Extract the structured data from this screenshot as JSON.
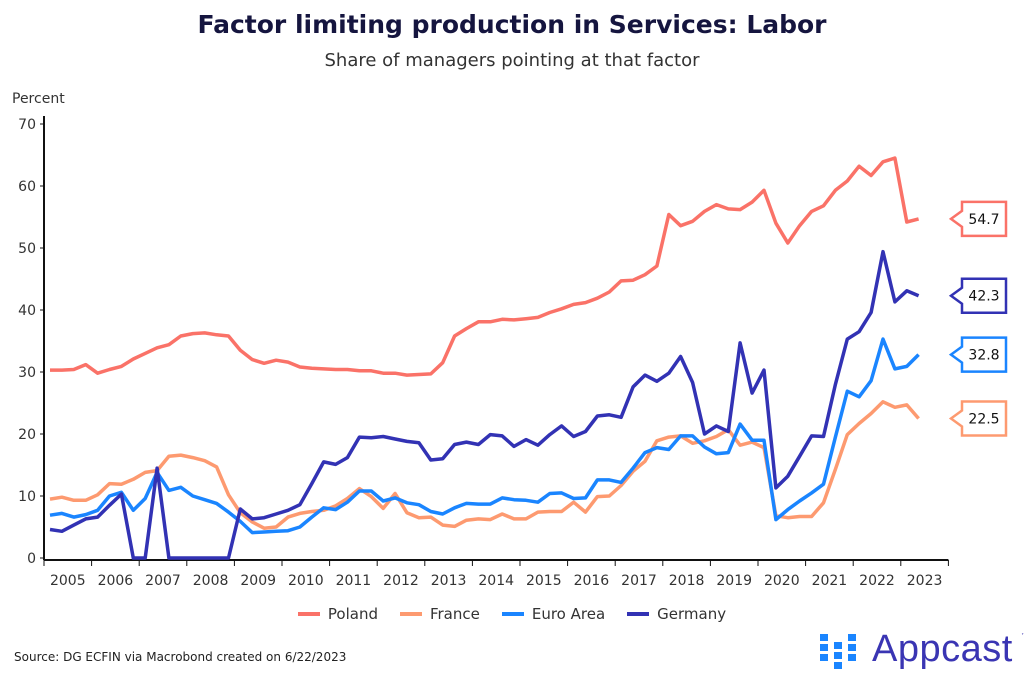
{
  "chart_data": {
    "type": "line",
    "title": "Factor limiting production in Services: Labor",
    "subtitle": "Share of managers pointing at that factor",
    "ylabel": "Percent",
    "xlabel": "",
    "ylim": [
      0,
      70
    ],
    "yticks": [
      "0",
      "10",
      "20",
      "30",
      "40",
      "50",
      "60",
      "70"
    ],
    "xticks": [
      "2005",
      "2006",
      "2007",
      "2008",
      "2009",
      "2010",
      "2011",
      "2012",
      "2013",
      "2014",
      "2015",
      "2016",
      "2017",
      "2018",
      "2019",
      "2020",
      "2021",
      "2022",
      "2023"
    ],
    "x_start": "2005Q1",
    "frequency": "quarterly",
    "legend_position": "bottom",
    "series": [
      {
        "name": "Poland",
        "color": "#fa7268",
        "last_label": "54.7",
        "values": [
          30.3,
          30.3,
          30.4,
          31.2,
          29.8,
          30.4,
          30.9,
          32.1,
          33.0,
          33.9,
          34.4,
          35.8,
          36.2,
          36.3,
          36.0,
          35.8,
          33.5,
          32.0,
          31.4,
          31.9,
          31.6,
          30.8,
          30.6,
          30.5,
          30.4,
          30.4,
          30.2,
          30.2,
          29.8,
          29.8,
          29.5,
          29.6,
          29.7,
          31.5,
          35.8,
          37.0,
          38.1,
          38.1,
          38.5,
          38.4,
          38.6,
          38.8,
          39.6,
          40.2,
          40.9,
          41.2,
          41.9,
          42.9,
          44.7,
          44.8,
          45.7,
          47.1,
          55.4,
          53.6,
          54.3,
          55.9,
          57.0,
          56.3,
          56.2,
          57.4,
          59.3,
          54.0,
          50.8,
          53.6,
          55.9,
          56.8,
          59.3,
          60.8,
          63.2,
          61.7,
          63.9,
          64.5,
          54.2,
          54.7
        ]
      },
      {
        "name": "France",
        "color": "#fd9a70",
        "last_label": "22.5",
        "values": [
          9.5,
          9.8,
          9.3,
          9.3,
          10.2,
          12.0,
          11.9,
          12.7,
          13.8,
          14.1,
          16.4,
          16.6,
          16.2,
          15.7,
          14.7,
          10.2,
          7.3,
          5.8,
          4.8,
          5.0,
          6.6,
          7.2,
          7.5,
          7.7,
          8.4,
          9.6,
          11.2,
          9.9,
          8.0,
          10.4,
          7.3,
          6.5,
          6.6,
          5.3,
          5.1,
          6.1,
          6.3,
          6.2,
          7.1,
          6.3,
          6.3,
          7.4,
          7.5,
          7.5,
          9.0,
          7.4,
          9.9,
          10.0,
          11.7,
          14.0,
          15.6,
          18.9,
          19.5,
          19.7,
          18.5,
          18.9,
          19.6,
          20.7,
          18.2,
          18.7,
          17.8,
          6.8,
          6.5,
          6.7,
          6.7,
          8.9,
          14.3,
          19.9,
          21.7,
          23.3,
          25.2,
          24.3,
          24.7,
          22.5
        ]
      },
      {
        "name": "Euro Area",
        "color": "#1a85ff",
        "last_label": "32.8",
        "values": [
          6.9,
          7.2,
          6.6,
          7.0,
          7.7,
          10.0,
          10.6,
          7.7,
          9.6,
          13.8,
          10.9,
          11.4,
          10.0,
          9.4,
          8.8,
          7.4,
          5.9,
          4.1,
          4.2,
          4.3,
          4.4,
          5.0,
          6.6,
          8.1,
          7.8,
          9.0,
          10.8,
          10.8,
          9.2,
          9.7,
          8.9,
          8.6,
          7.5,
          7.1,
          8.1,
          8.8,
          8.7,
          8.7,
          9.7,
          9.4,
          9.3,
          9.0,
          10.4,
          10.5,
          9.6,
          9.7,
          12.6,
          12.6,
          12.2,
          14.5,
          17.0,
          17.8,
          17.5,
          19.7,
          19.7,
          17.9,
          16.8,
          17.0,
          21.6,
          19.0,
          19.0,
          6.2,
          7.8,
          9.2,
          10.5,
          11.9,
          19.5,
          26.9,
          26.0,
          28.6,
          35.3,
          30.5,
          30.9,
          32.8
        ]
      },
      {
        "name": "Germany",
        "color": "#3232b4",
        "last_label": "42.3",
        "values": [
          4.6,
          4.3,
          5.3,
          6.3,
          6.6,
          8.5,
          10.3,
          0,
          0,
          14.5,
          0,
          0,
          0,
          0,
          0,
          0,
          7.9,
          6.3,
          6.5,
          7.1,
          7.7,
          8.6,
          12.0,
          15.5,
          15.1,
          16.2,
          19.5,
          19.4,
          19.6,
          19.2,
          18.8,
          18.6,
          15.8,
          16.0,
          18.3,
          18.7,
          18.3,
          19.9,
          19.7,
          18.0,
          19.1,
          18.2,
          19.9,
          21.3,
          19.6,
          20.4,
          22.9,
          23.1,
          22.7,
          27.6,
          29.5,
          28.5,
          29.8,
          32.5,
          28.3,
          20.0,
          21.3,
          20.4,
          34.7,
          26.6,
          30.3,
          11.3,
          13.2,
          16.4,
          19.7,
          19.6,
          28.0,
          35.3,
          36.5,
          39.6,
          49.4,
          41.3,
          43.1,
          42.3
        ]
      }
    ]
  },
  "footer": {
    "source": "Source: DG ECFIN via Macrobond created on 6/22/2023",
    "logo_text": "Appcast",
    "logo_tm": "™"
  }
}
